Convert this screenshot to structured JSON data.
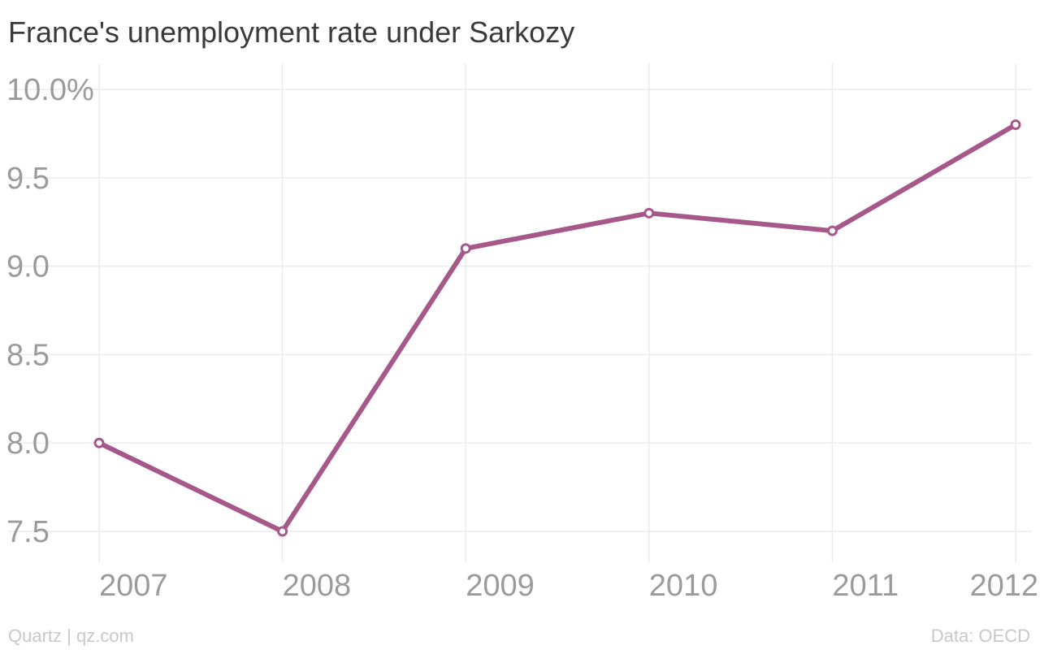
{
  "chart_data": {
    "type": "line",
    "title": "France's unemployment rate under Sarkozy",
    "xlabel": "",
    "ylabel": "",
    "categories": [
      "2007",
      "2008",
      "2009",
      "2010",
      "2011",
      "2012"
    ],
    "series": [
      {
        "values": [
          8.0,
          7.5,
          9.1,
          9.3,
          9.2,
          9.8
        ],
        "color": "#a6588a"
      }
    ],
    "ylim": [
      7.5,
      10.0
    ],
    "yticks": [
      7.5,
      8.0,
      8.5,
      9.0,
      9.5,
      10.0
    ],
    "ytick_labels": [
      "7.5",
      "8.0",
      "8.5",
      "9.0",
      "9.5",
      "10.0%"
    ],
    "grid": true,
    "legend": "none"
  },
  "footer": {
    "source_left": "Quartz | qz.com",
    "source_right": "Data: OECD"
  }
}
